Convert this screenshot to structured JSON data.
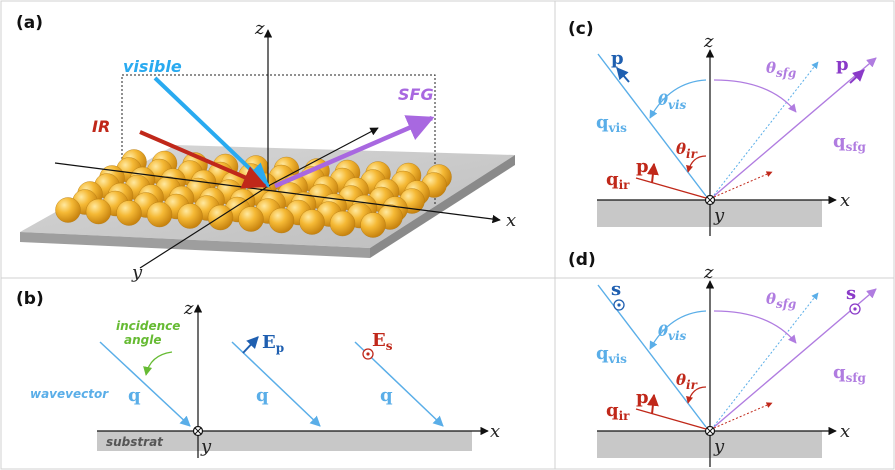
{
  "panels": {
    "a": {
      "label": "(a)",
      "axes": {
        "x": "x",
        "y": "y",
        "z": "z"
      },
      "beams": {
        "visible": "visible",
        "ir": "IR",
        "sfg": "SFG"
      }
    },
    "b": {
      "label": "(b)",
      "axes": {
        "x": "x",
        "y": "y",
        "z": "z"
      },
      "incidence_line1": "incidence",
      "incidence_line2": "angle",
      "wavevector": "wavevector",
      "q_symbol": "q",
      "e_p": "E",
      "e_p_sub": "p",
      "e_s": "E",
      "e_s_sub": "s",
      "substrate": "substrat"
    },
    "c": {
      "label": "(c)",
      "axes": {
        "x": "x",
        "y": "y",
        "z": "z"
      },
      "q_vis": "q",
      "q_vis_sub": "vis",
      "q_ir": "q",
      "q_ir_sub": "ir",
      "q_sfg": "q",
      "q_sfg_sub": "sfg",
      "theta_vis": "θ",
      "theta_vis_sub": "vis",
      "theta_ir": "θ",
      "theta_ir_sub": "ir",
      "theta_sfg": "θ",
      "theta_sfg_sub": "sfg",
      "pol_vis": "p",
      "pol_ir": "p",
      "pol_sfg": "p"
    },
    "d": {
      "label": "(d)",
      "axes": {
        "x": "x",
        "y": "y",
        "z": "z"
      },
      "q_vis": "q",
      "q_vis_sub": "vis",
      "q_ir": "q",
      "q_ir_sub": "ir",
      "q_sfg": "q",
      "q_sfg_sub": "sfg",
      "theta_vis": "θ",
      "theta_vis_sub": "vis",
      "theta_ir": "θ",
      "theta_ir_sub": "ir",
      "theta_sfg": "θ",
      "theta_sfg_sub": "sfg",
      "pol_vis": "s",
      "pol_ir": "p",
      "pol_sfg": "s"
    }
  },
  "colors": {
    "visible": "#29aaf0",
    "ir": "#c0281a",
    "sfg": "#a868e0",
    "vis_light": "#5aaee8",
    "sfg_light": "#b07ce0",
    "pol_blue": "#1f5fb0",
    "substrate": "#c8c8c8",
    "gold": "#f2b22a",
    "green": "#66bb33"
  }
}
